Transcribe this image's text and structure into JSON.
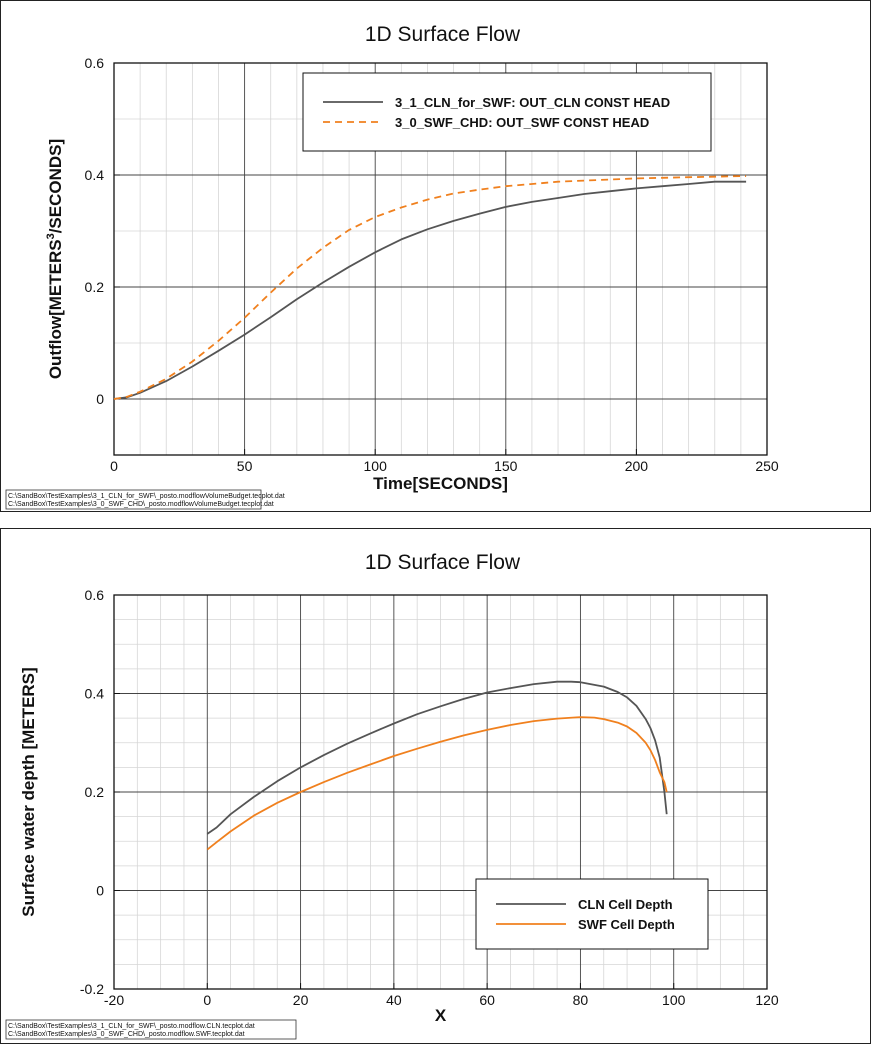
{
  "chart_data": [
    {
      "type": "line",
      "title": "1D Surface Flow",
      "xlabel": "Time[SECONDS]",
      "ylabel_main": "Outflow[METERS",
      "ylabel_sup": "3",
      "ylabel_tail": "/SECONDS]",
      "xlim": [
        0,
        250
      ],
      "ylim": [
        -0.1,
        0.6
      ],
      "xticks": [
        0,
        50,
        100,
        150,
        200,
        250
      ],
      "yticks": [
        0,
        0.2,
        0.4,
        0.6
      ],
      "xtick_labels": [
        "0",
        "50",
        "100",
        "150",
        "200",
        "250"
      ],
      "ytick_labels": [
        "0",
        "0.2",
        "0.4",
        "0.6"
      ],
      "grid": true,
      "legend_position": "top-right",
      "series": [
        {
          "name": "3_1_CLN_for_SWF: OUT_CLN CONST HEAD",
          "color": "#555555",
          "dash": "solid",
          "x": [
            0,
            5,
            10,
            20,
            30,
            40,
            50,
            60,
            70,
            80,
            90,
            100,
            110,
            120,
            130,
            140,
            150,
            160,
            170,
            180,
            190,
            200,
            210,
            220,
            230,
            240,
            242
          ],
          "y": [
            0,
            0.003,
            0.011,
            0.032,
            0.058,
            0.086,
            0.115,
            0.146,
            0.178,
            0.208,
            0.236,
            0.262,
            0.285,
            0.303,
            0.318,
            0.331,
            0.343,
            0.352,
            0.359,
            0.366,
            0.371,
            0.376,
            0.38,
            0.384,
            0.388,
            0.388,
            0.388
          ]
        },
        {
          "name": "3_0_SWF_CHD: OUT_SWF CONST HEAD",
          "color": "#f0801e",
          "dash": "dashed",
          "x": [
            0,
            5,
            10,
            20,
            30,
            40,
            50,
            60,
            70,
            80,
            90,
            100,
            110,
            120,
            130,
            140,
            150,
            160,
            170,
            180,
            190,
            200,
            210,
            220,
            230,
            240,
            242
          ],
          "y": [
            0,
            0.004,
            0.013,
            0.036,
            0.067,
            0.104,
            0.145,
            0.19,
            0.233,
            0.27,
            0.302,
            0.325,
            0.342,
            0.356,
            0.367,
            0.374,
            0.38,
            0.384,
            0.388,
            0.39,
            0.392,
            0.394,
            0.395,
            0.396,
            0.397,
            0.398,
            0.398
          ]
        }
      ],
      "source_lines": [
        "C:\\SandBox\\TestExamples\\3_1_CLN_for_SWF\\_posto.modflowVolumeBudget.tecplot.dat",
        "C:\\SandBox\\TestExamples\\3_0_SWF_CHD\\_posto.modflowVolumeBudget.tecplot.dat"
      ]
    },
    {
      "type": "line",
      "title": "1D Surface Flow",
      "xlabel": "X",
      "ylabel": "Surface water depth [METERS]",
      "xlim": [
        -20,
        120
      ],
      "ylim": [
        -0.2,
        0.6
      ],
      "xticks": [
        -20,
        0,
        20,
        40,
        60,
        80,
        100,
        120
      ],
      "yticks": [
        -0.2,
        0,
        0.2,
        0.4,
        0.6
      ],
      "xtick_labels": [
        "-20",
        "0",
        "20",
        "40",
        "60",
        "80",
        "100",
        "120"
      ],
      "ytick_labels": [
        "-0.2",
        "0",
        "0.2",
        "0.4",
        "0.6"
      ],
      "grid": true,
      "legend_position": "bottom-right",
      "series": [
        {
          "name": "CLN Cell Depth",
          "color": "#555555",
          "dash": "solid",
          "x": [
            0,
            2,
            5,
            10,
            15,
            20,
            25,
            30,
            35,
            40,
            45,
            50,
            55,
            60,
            65,
            70,
            75,
            78,
            80,
            85,
            88,
            90,
            92,
            94,
            95,
            96,
            97,
            98,
            98.5
          ],
          "y": [
            0.115,
            0.128,
            0.155,
            0.19,
            0.222,
            0.25,
            0.275,
            0.298,
            0.319,
            0.339,
            0.358,
            0.374,
            0.389,
            0.402,
            0.411,
            0.419,
            0.424,
            0.424,
            0.423,
            0.414,
            0.403,
            0.392,
            0.375,
            0.348,
            0.33,
            0.305,
            0.27,
            0.2,
            0.155
          ]
        },
        {
          "name": "SWF Cell Depth",
          "color": "#f0801e",
          "dash": "solid",
          "x": [
            0,
            2,
            5,
            10,
            15,
            20,
            25,
            30,
            35,
            40,
            45,
            50,
            55,
            60,
            65,
            70,
            75,
            80,
            83,
            85,
            88,
            90,
            92,
            94,
            95,
            96,
            97,
            98,
            98.5
          ],
          "y": [
            0.083,
            0.098,
            0.12,
            0.152,
            0.178,
            0.2,
            0.22,
            0.239,
            0.256,
            0.273,
            0.288,
            0.302,
            0.315,
            0.326,
            0.336,
            0.344,
            0.349,
            0.352,
            0.351,
            0.348,
            0.341,
            0.333,
            0.32,
            0.3,
            0.285,
            0.265,
            0.24,
            0.22,
            0.2
          ]
        }
      ],
      "source_lines": [
        "C:\\SandBox\\TestExamples\\3_1_CLN_for_SWF\\_posto.modflow.CLN.tecplot.dat",
        "C:\\SandBox\\TestExamples\\3_0_SWF_CHD\\_posto.modflow.SWF.tecplot.dat"
      ]
    }
  ]
}
